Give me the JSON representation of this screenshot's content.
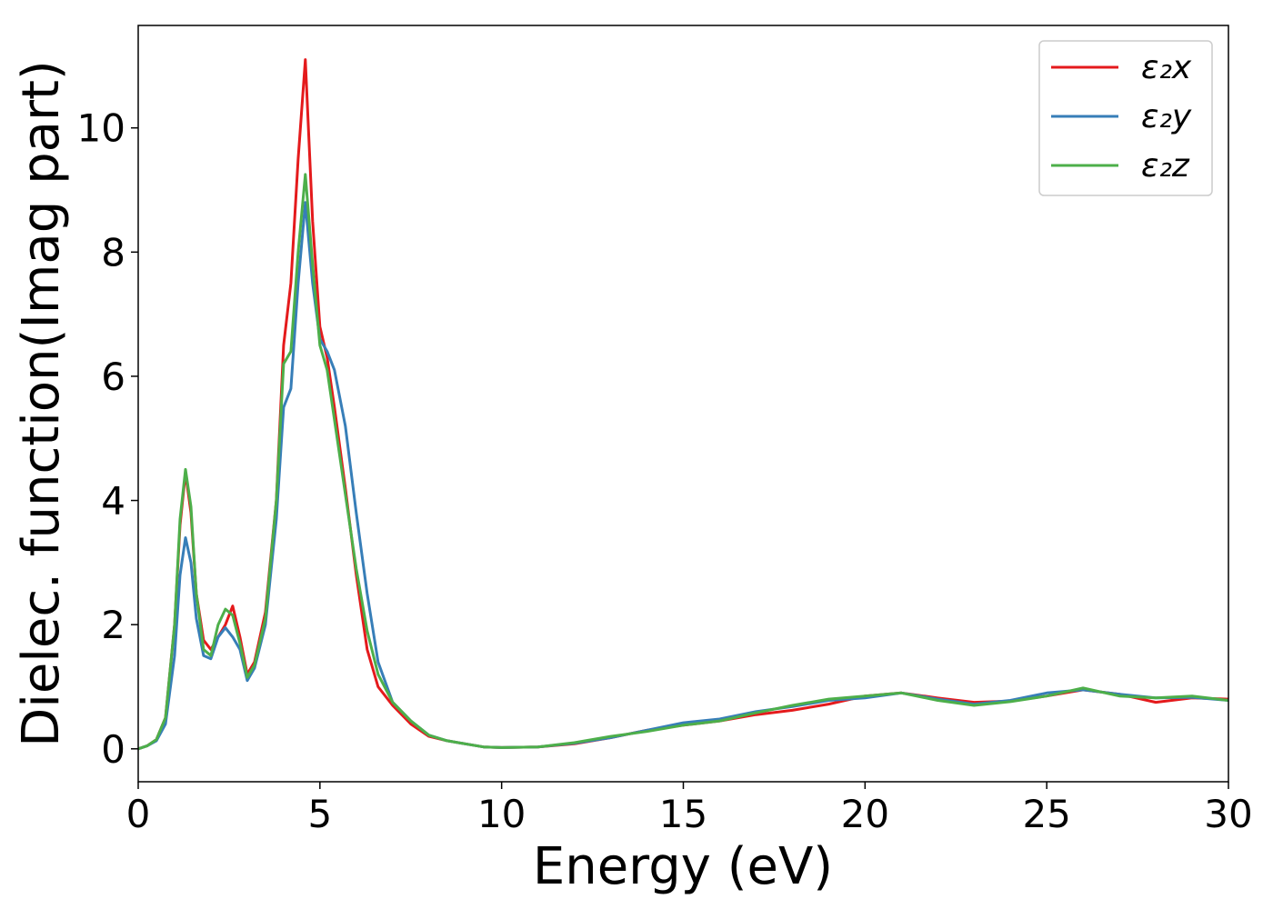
{
  "chart_data": {
    "type": "line",
    "xlabel": "Energy (eV)",
    "ylabel": "Dielec. function(Imag part)",
    "x": [
      0,
      0.25,
      0.5,
      0.75,
      1.0,
      1.15,
      1.3,
      1.45,
      1.6,
      1.8,
      2.0,
      2.2,
      2.4,
      2.6,
      2.8,
      3.0,
      3.2,
      3.5,
      3.8,
      4.0,
      4.2,
      4.4,
      4.6,
      4.8,
      5.0,
      5.2,
      5.4,
      5.7,
      6.0,
      6.3,
      6.6,
      7.0,
      7.5,
      8,
      8.5,
      9,
      9.5,
      10,
      11,
      12,
      13,
      14,
      15,
      16,
      17,
      18,
      19,
      20,
      21,
      22,
      23,
      24,
      25,
      26,
      27,
      28,
      29,
      30
    ],
    "series": [
      {
        "name": "ε₂x",
        "color": "#e41a1c",
        "values": [
          0,
          0.05,
          0.15,
          0.5,
          2.0,
          3.6,
          4.45,
          3.8,
          2.5,
          1.75,
          1.6,
          1.8,
          2.0,
          2.3,
          1.8,
          1.2,
          1.4,
          2.2,
          4.0,
          6.5,
          7.5,
          9.5,
          11.1,
          8.5,
          6.8,
          6.3,
          5.5,
          4.2,
          2.8,
          1.6,
          1.0,
          0.7,
          0.4,
          0.2,
          0.13,
          0.08,
          0.03,
          0.02,
          0.03,
          0.08,
          0.18,
          0.3,
          0.38,
          0.45,
          0.55,
          0.62,
          0.72,
          0.85,
          0.9,
          0.82,
          0.75,
          0.77,
          0.85,
          0.95,
          0.88,
          0.75,
          0.82,
          0.8
        ]
      },
      {
        "name": "ε₂y",
        "color": "#377eb8",
        "values": [
          0,
          0.05,
          0.13,
          0.4,
          1.5,
          2.8,
          3.4,
          3.0,
          2.1,
          1.5,
          1.45,
          1.8,
          1.95,
          1.8,
          1.6,
          1.1,
          1.3,
          2.0,
          3.7,
          5.5,
          5.8,
          7.5,
          8.8,
          7.5,
          6.6,
          6.4,
          6.1,
          5.2,
          3.8,
          2.5,
          1.4,
          0.75,
          0.45,
          0.22,
          0.13,
          0.08,
          0.03,
          0.02,
          0.03,
          0.09,
          0.18,
          0.3,
          0.42,
          0.48,
          0.6,
          0.68,
          0.78,
          0.82,
          0.9,
          0.8,
          0.72,
          0.78,
          0.9,
          0.95,
          0.88,
          0.82,
          0.83,
          0.78
        ]
      },
      {
        "name": "ε₂z",
        "color": "#4daf4a",
        "values": [
          0,
          0.05,
          0.15,
          0.5,
          2.0,
          3.7,
          4.5,
          3.9,
          2.5,
          1.6,
          1.5,
          2.0,
          2.25,
          2.15,
          1.7,
          1.15,
          1.35,
          2.1,
          4.0,
          6.2,
          6.4,
          8.0,
          9.25,
          7.8,
          6.5,
          6.1,
          5.3,
          4.1,
          2.9,
          1.9,
          1.2,
          0.75,
          0.45,
          0.22,
          0.13,
          0.08,
          0.03,
          0.02,
          0.03,
          0.1,
          0.2,
          0.28,
          0.38,
          0.45,
          0.58,
          0.7,
          0.8,
          0.85,
          0.9,
          0.78,
          0.7,
          0.76,
          0.85,
          0.98,
          0.85,
          0.82,
          0.85,
          0.78
        ]
      }
    ],
    "xlim": [
      0,
      30
    ],
    "xticks": [
      0,
      5,
      10,
      15,
      20,
      25,
      30
    ],
    "ylim": [
      -0.53,
      11.65
    ],
    "yticks": [
      0,
      2,
      4,
      6,
      8,
      10
    ],
    "grid": false,
    "legend": "upper right"
  }
}
